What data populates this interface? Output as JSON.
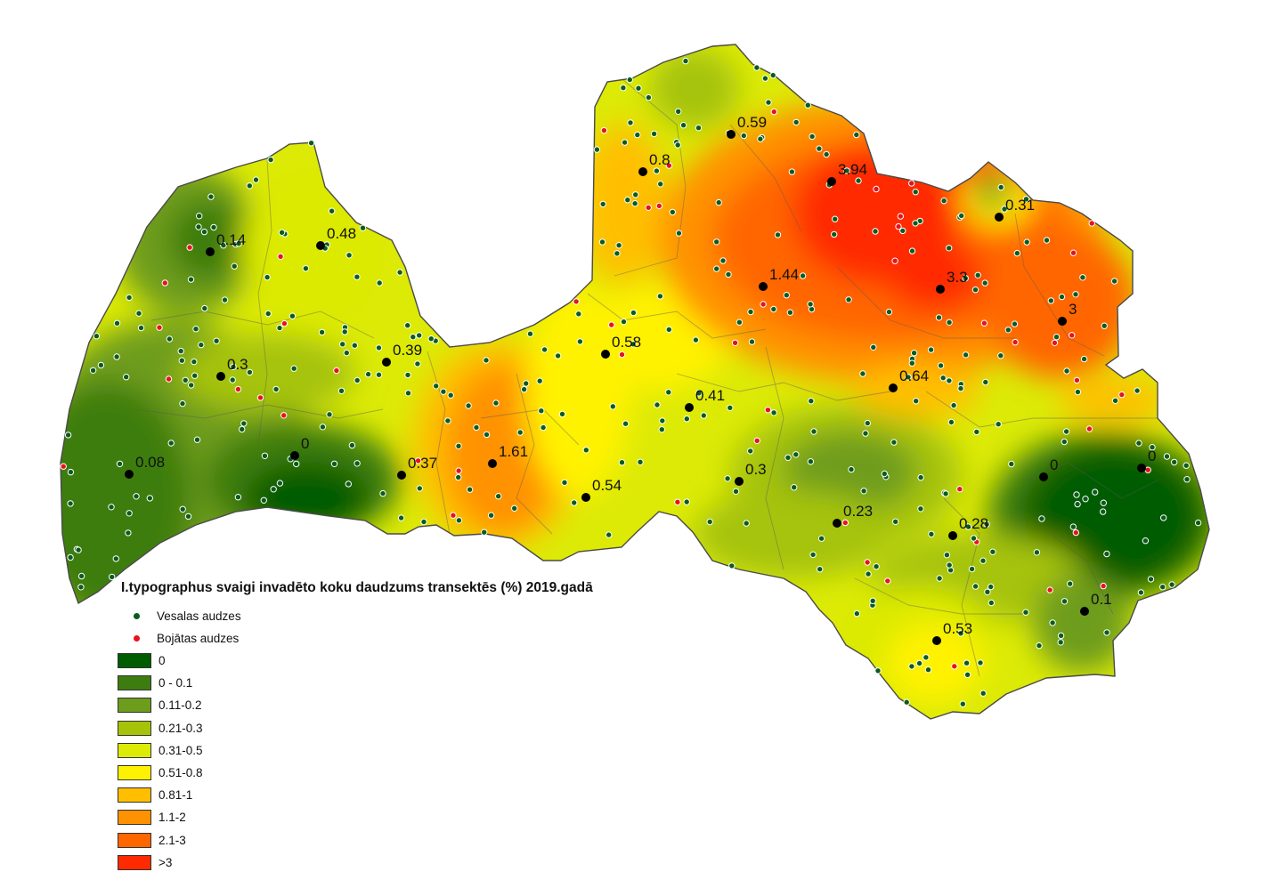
{
  "title": "I.typographus svaigi invadēto koku daudzums transektēs (%) 2019.gadā",
  "legend": {
    "points": [
      {
        "label": "Vesalas audzes",
        "color": "#0b5c1c",
        "icon": "green-dot"
      },
      {
        "label": "Bojātas audzes",
        "color": "#e8121c",
        "icon": "red-dot"
      }
    ],
    "classes": [
      {
        "label": "0",
        "color": "#005c00"
      },
      {
        "label": "0 - 0.1",
        "color": "#3d7d10"
      },
      {
        "label": "0.11-0.2",
        "color": "#6e9c1c"
      },
      {
        "label": "0.21-0.3",
        "color": "#a6c30a"
      },
      {
        "label": "0.31-0.5",
        "color": "#dcea06"
      },
      {
        "label": "0.51-0.8",
        "color": "#fff200"
      },
      {
        "label": "0.81-1",
        "color": "#ffbf00"
      },
      {
        "label": "1.1-2",
        "color": "#ff9200"
      },
      {
        "label": "2.1-3",
        "color": "#ff6600"
      },
      {
        "label": ">3",
        "color": "#ff2a00"
      }
    ]
  },
  "values": [
    "0.14",
    "0.48",
    "0.3",
    "0.39",
    "0.08",
    "0",
    "0.37",
    "1.61",
    "0.54",
    "0.58",
    "0.8",
    "0.59",
    "3.94",
    "0.31",
    "1.44",
    "3.3",
    "3",
    "0.64",
    "0.41",
    "0.3",
    "0.23",
    "0.28",
    "0",
    "0",
    "0.1",
    "0.53"
  ]
}
